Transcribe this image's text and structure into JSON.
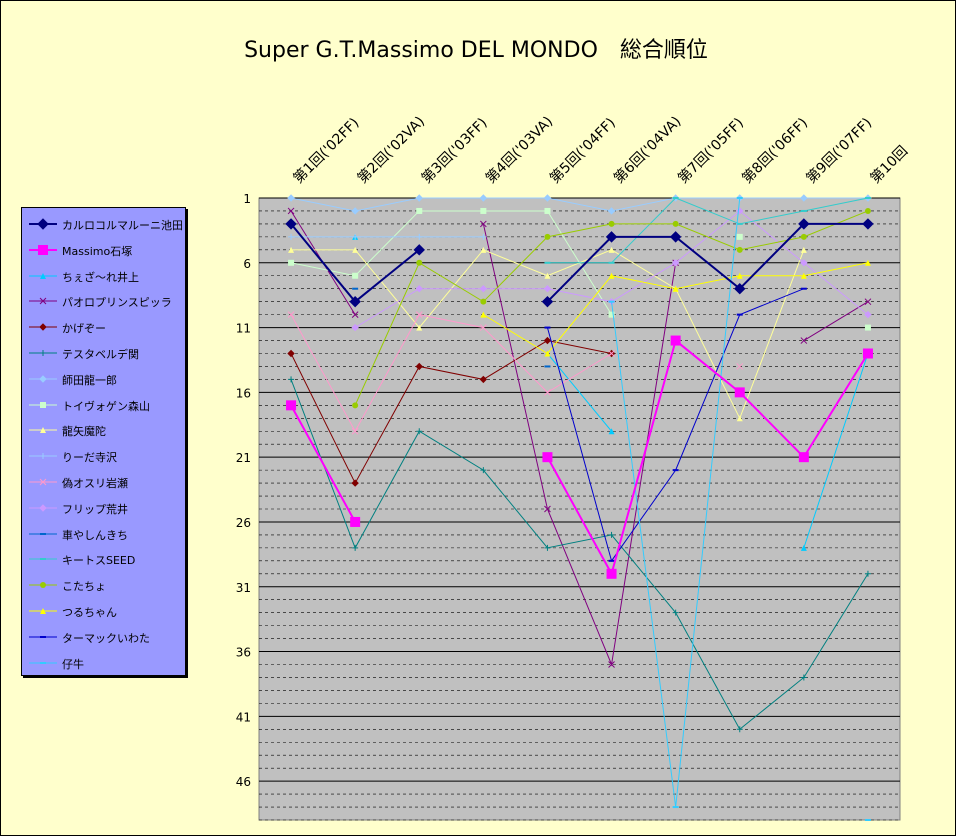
{
  "chart_data": {
    "type": "line",
    "title": "Super G.T.Massimo DEL MONDO　総合順位",
    "categories": [
      "第1回('02FF)",
      "第2回('02VA)",
      "第3回('03FF)",
      "第4回('03VA)",
      "第5回('04FF)",
      "第6回('04VA)",
      "第7回('05FF)",
      "第8回('06FF)",
      "第9回('07FF)",
      "第10回"
    ],
    "y_ticks": [
      "1",
      "6",
      "11",
      "16",
      "21",
      "26",
      "31",
      "36",
      "41",
      "46"
    ],
    "ylim": [
      1,
      49
    ],
    "y_reversed": true,
    "grid": true,
    "legend_position": "left",
    "series": [
      {
        "name": "カルロコルマルーニ池田",
        "color": "#000080",
        "marker": "diamond",
        "width": 2,
        "values": [
          3,
          9,
          5,
          null,
          9,
          4,
          4,
          8,
          3,
          3
        ]
      },
      {
        "name": "Massimo石塚",
        "color": "#ff00ff",
        "marker": "square",
        "width": 2,
        "values": [
          17,
          26,
          null,
          null,
          21,
          30,
          12,
          16,
          21,
          13
        ]
      },
      {
        "name": "ちぇざ〜れ井上",
        "color": "#00ccff",
        "marker": "triangle",
        "width": 1,
        "values": [
          null,
          4,
          null,
          null,
          13,
          19,
          null,
          null,
          28,
          13
        ]
      },
      {
        "name": "パオロプリンスピッラ",
        "color": "#800080",
        "marker": "x",
        "width": 1,
        "values": [
          2,
          10,
          null,
          3,
          25,
          37,
          6,
          null,
          12,
          9
        ]
      },
      {
        "name": "かげぞー",
        "color": "#800000",
        "marker": "diamond",
        "width": 1,
        "values": [
          13,
          23,
          14,
          15,
          12,
          13,
          null,
          null,
          null,
          null
        ]
      },
      {
        "name": "テスタベルデ関",
        "color": "#008080",
        "marker": "plus",
        "width": 1,
        "values": [
          15,
          28,
          19,
          22,
          28,
          27,
          33,
          42,
          38,
          30
        ]
      },
      {
        "name": "師田龍一郎",
        "color": "#99ccff",
        "marker": "diamond",
        "width": 1,
        "values": [
          1,
          2,
          1,
          1,
          1,
          2,
          1,
          1,
          1,
          1
        ]
      },
      {
        "name": "トイヴォゲン森山",
        "color": "#ccffcc",
        "marker": "square",
        "width": 1,
        "values": [
          6,
          7,
          2,
          2,
          2,
          10,
          null,
          4,
          null,
          11
        ]
      },
      {
        "name": "龍矢魔陀",
        "color": "#ffff99",
        "marker": "triangle",
        "width": 1,
        "values": [
          5,
          5,
          11,
          5,
          7,
          5,
          8,
          18,
          5,
          null
        ]
      },
      {
        "name": "りーだ寺沢",
        "color": "#99ccff",
        "marker": "plus",
        "width": 1,
        "values": [
          4,
          4,
          4,
          4,
          null,
          null,
          null,
          null,
          null,
          null
        ]
      },
      {
        "name": "偽オスリ岩瀬",
        "color": "#ff99cc",
        "marker": "x",
        "width": 1,
        "values": [
          10,
          19,
          10,
          11,
          16,
          13,
          null,
          14,
          null,
          null
        ]
      },
      {
        "name": "フリップ荒井",
        "color": "#cc99ff",
        "marker": "diamond",
        "width": 1,
        "values": [
          null,
          11,
          8,
          8,
          8,
          9,
          6,
          2,
          6,
          10
        ]
      },
      {
        "name": "車やしんきち",
        "color": "#0066cc",
        "marker": "dash",
        "width": 1,
        "values": [
          null,
          8,
          null,
          null,
          14,
          null,
          null,
          null,
          null,
          null
        ]
      },
      {
        "name": "キートスSEED",
        "color": "#33cccc",
        "marker": "dash",
        "width": 1,
        "values": [
          null,
          null,
          null,
          null,
          6,
          6,
          1,
          3,
          2,
          1
        ]
      },
      {
        "name": "こたちょ",
        "color": "#99cc00",
        "marker": "circle",
        "width": 1,
        "values": [
          null,
          17,
          6,
          9,
          4,
          3,
          3,
          5,
          4,
          2
        ]
      },
      {
        "name": "つるちゃん",
        "color": "#ffff00",
        "marker": "triangle",
        "width": 1,
        "values": [
          null,
          null,
          null,
          10,
          13,
          7,
          8,
          7,
          7,
          6
        ]
      },
      {
        "name": "ターマックいわた",
        "color": "#0000cc",
        "marker": "dash",
        "width": 1,
        "values": [
          null,
          null,
          null,
          null,
          11,
          29,
          22,
          10,
          8,
          null
        ]
      },
      {
        "name": "仔牛",
        "color": "#33ccff",
        "marker": "dash",
        "width": 1,
        "values": [
          null,
          null,
          null,
          null,
          null,
          9,
          48,
          1,
          null,
          49
        ]
      }
    ]
  }
}
